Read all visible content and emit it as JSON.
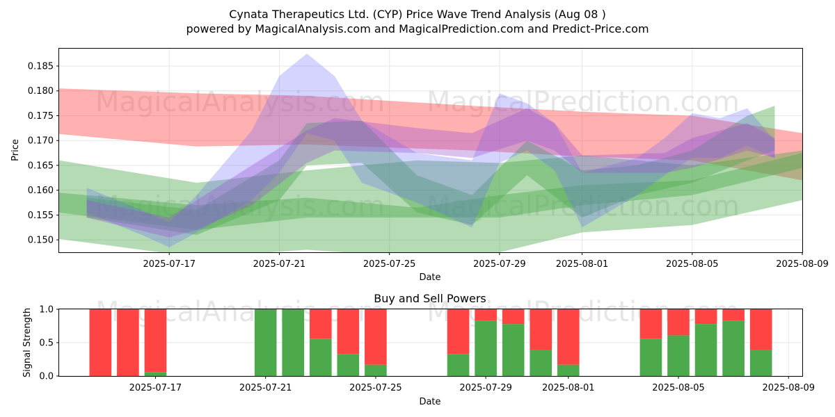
{
  "title_line1": "Cynata Therapeutics Ltd. (CYP) Price Wave Trend Analysis (Aug 08 )",
  "title_line2": "powered by MagicalAnalysis.com and MagicalPrediction.com and Predict-Price.com",
  "watermarks": [
    "MagicalAnalysis.com",
    "MagicalPrediction.com"
  ],
  "colors": {
    "red": "#ff4444",
    "green": "#4caa4c",
    "blue": "#6666ff",
    "purple": "#9a4fd0"
  },
  "chart_data": [
    {
      "type": "area",
      "title": "",
      "xlabel": "Date",
      "ylabel": "Price",
      "xlim": [
        "2025-07-13",
        "2025-08-09"
      ],
      "ylim": [
        0.1475,
        0.1885
      ],
      "xticks": [
        "2025-07-17",
        "2025-07-21",
        "2025-07-25",
        "2025-07-29",
        "2025-08-01",
        "2025-08-05",
        "2025-08-09"
      ],
      "yticks": [
        0.15,
        0.155,
        0.16,
        0.165,
        0.17,
        0.175,
        0.18,
        0.185
      ],
      "ytick_labels": [
        "0.150",
        "0.155",
        "0.160",
        "0.165",
        "0.170",
        "0.175",
        "0.180",
        "0.185"
      ],
      "grid": true,
      "bands": [
        {
          "name": "red-trend-band",
          "color": "red",
          "x": [
            "2025-07-13",
            "2025-07-18",
            "2025-07-22",
            "2025-07-28",
            "2025-08-01",
            "2025-08-05",
            "2025-08-09"
          ],
          "upper": [
            0.1805,
            0.1795,
            0.179,
            0.177,
            0.1758,
            0.175,
            0.1715
          ],
          "lower": [
            0.1713,
            0.1688,
            0.1692,
            0.168,
            0.1668,
            0.166,
            0.162
          ]
        },
        {
          "name": "green-wide-band",
          "color": "green",
          "x": [
            "2025-07-13",
            "2025-07-18",
            "2025-07-22",
            "2025-07-26",
            "2025-07-29",
            "2025-08-01",
            "2025-08-05",
            "2025-08-09"
          ],
          "upper": [
            0.166,
            0.1615,
            0.164,
            0.166,
            0.1655,
            0.167,
            0.165,
            0.168
          ],
          "lower": [
            0.1502,
            0.1465,
            0.148,
            0.1465,
            0.1475,
            0.1515,
            0.153,
            0.158
          ]
        },
        {
          "name": "green-mid-band",
          "color": "green",
          "x": [
            "2025-07-13",
            "2025-07-18",
            "2025-07-22",
            "2025-07-26",
            "2025-07-29",
            "2025-08-01",
            "2025-08-05",
            "2025-08-09"
          ],
          "upper": [
            0.1595,
            0.157,
            0.1585,
            0.1565,
            0.159,
            0.161,
            0.162,
            0.1675
          ],
          "lower": [
            0.1555,
            0.152,
            0.1545,
            0.1545,
            0.1545,
            0.157,
            0.159,
            0.1645
          ]
        },
        {
          "name": "green-wave-band",
          "color": "green",
          "x": [
            "2025-07-14",
            "2025-07-18",
            "2025-07-21",
            "2025-07-22",
            "2025-07-24",
            "2025-07-26",
            "2025-07-28",
            "2025-07-30",
            "2025-08-01",
            "2025-08-03",
            "2025-08-05",
            "2025-08-07",
            "2025-08-08"
          ],
          "upper": [
            0.1585,
            0.156,
            0.166,
            0.1735,
            0.174,
            0.163,
            0.159,
            0.17,
            0.164,
            0.165,
            0.168,
            0.175,
            0.177
          ],
          "lower": [
            0.1545,
            0.151,
            0.158,
            0.165,
            0.1655,
            0.1555,
            0.153,
            0.163,
            0.1545,
            0.159,
            0.1615,
            0.166,
            0.168
          ]
        },
        {
          "name": "blue-wave-band",
          "color": "blue",
          "x": [
            "2025-07-14",
            "2025-07-16",
            "2025-07-17",
            "2025-07-18",
            "2025-07-20",
            "2025-07-21",
            "2025-07-22",
            "2025-07-23",
            "2025-07-24",
            "2025-07-26",
            "2025-07-28",
            "2025-07-29",
            "2025-07-30",
            "2025-07-31",
            "2025-08-01",
            "2025-08-03",
            "2025-08-04",
            "2025-08-05",
            "2025-08-06",
            "2025-08-07",
            "2025-08-08"
          ],
          "upper": [
            0.1605,
            0.156,
            0.1535,
            0.159,
            0.172,
            0.183,
            0.1875,
            0.183,
            0.174,
            0.1675,
            0.166,
            0.1795,
            0.1775,
            0.1735,
            0.1635,
            0.1665,
            0.1705,
            0.1755,
            0.1745,
            0.1765,
            0.17
          ],
          "lower": [
            0.1555,
            0.151,
            0.1485,
            0.1515,
            0.158,
            0.1635,
            0.1715,
            0.17,
            0.1615,
            0.1575,
            0.1525,
            0.1655,
            0.168,
            0.164,
            0.1525,
            0.159,
            0.163,
            0.1665,
            0.1665,
            0.169,
            0.1665
          ]
        },
        {
          "name": "purple-wave-band",
          "color": "purple",
          "x": [
            "2025-07-14",
            "2025-07-17",
            "2025-07-18",
            "2025-07-20",
            "2025-07-22",
            "2025-07-23",
            "2025-07-26",
            "2025-07-28",
            "2025-07-30",
            "2025-07-31",
            "2025-08-01",
            "2025-08-04",
            "2025-08-05",
            "2025-08-07",
            "2025-08-08"
          ],
          "upper": [
            0.158,
            0.1545,
            0.158,
            0.165,
            0.172,
            0.1745,
            0.1725,
            0.1715,
            0.1765,
            0.1735,
            0.167,
            0.1675,
            0.1705,
            0.1735,
            0.1705
          ],
          "lower": [
            0.1545,
            0.1505,
            0.152,
            0.157,
            0.1655,
            0.168,
            0.1675,
            0.1665,
            0.17,
            0.168,
            0.1635,
            0.1635,
            0.1645,
            0.168,
            0.1665
          ]
        }
      ]
    },
    {
      "type": "bar",
      "title": "Buy and Sell Powers",
      "xlabel": "Date",
      "ylabel": "Signal Strength",
      "ylim": [
        0,
        1
      ],
      "yticks": [
        0.0,
        0.5,
        1.0
      ],
      "ytick_labels": [
        "0.0",
        "0.5",
        "1.0"
      ],
      "xticks": [
        "2025-07-17",
        "2025-07-21",
        "2025-07-25",
        "2025-07-29",
        "2025-08-01",
        "2025-08-05",
        "2025-08-09"
      ],
      "grid": true,
      "legend": "none",
      "categories": [
        "2025-07-15",
        "2025-07-16",
        "2025-07-17",
        "2025-07-21",
        "2025-07-22",
        "2025-07-23",
        "2025-07-24",
        "2025-07-25",
        "2025-07-28",
        "2025-07-29",
        "2025-07-30",
        "2025-07-31",
        "2025-08-01",
        "2025-08-04",
        "2025-08-05",
        "2025-08-06",
        "2025-08-07",
        "2025-08-08"
      ],
      "series": [
        {
          "name": "Buy Power",
          "color": "green",
          "values": [
            0.0,
            0.0,
            0.06,
            1.0,
            1.0,
            0.56,
            0.33,
            0.17,
            0.33,
            0.83,
            0.78,
            0.39,
            0.17,
            0.56,
            0.61,
            0.78,
            0.83,
            0.39
          ]
        },
        {
          "name": "Sell Power",
          "color": "red",
          "values": [
            1.0,
            1.0,
            0.94,
            0.0,
            0.0,
            0.44,
            0.67,
            0.83,
            0.67,
            0.17,
            0.22,
            0.61,
            0.83,
            0.44,
            0.39,
            0.22,
            0.17,
            0.61
          ]
        }
      ]
    }
  ]
}
